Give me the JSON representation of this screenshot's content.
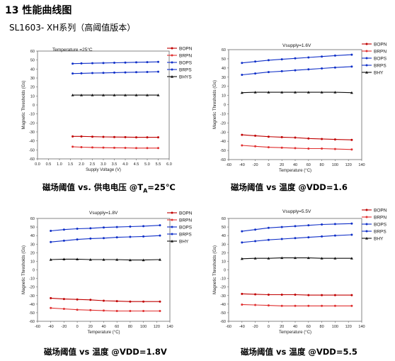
{
  "section": {
    "number": "13",
    "title": "性能曲线图"
  },
  "subtitle": "SL1603- XH系列（高阈值版本）",
  "series_styles": [
    {
      "name": "BOPN",
      "color": "#c00000",
      "marker": "circle"
    },
    {
      "name": "BRPN",
      "color": "#e03030",
      "marker": "circle"
    },
    {
      "name": "BOPS",
      "color": "#1030c8",
      "marker": "circle"
    },
    {
      "name": "BRPS",
      "color": "#1030c8",
      "marker": "circle"
    },
    {
      "name": "BHY",
      "color": "#111111",
      "marker": "triangle"
    }
  ],
  "captions": [
    {
      "main": "磁场阈值 vs.  供电电压  @T",
      "sub": "A",
      "tail": "=25℃"
    },
    {
      "main": "磁场阈值  vs  温度  @VDD=1.6",
      "sub": "",
      "tail": ""
    },
    {
      "main": "磁场阈值  vs  温度  @VDD=1.8V",
      "sub": "",
      "tail": ""
    },
    {
      "main": "磁场阈值  vs  温度  @VDD=5.5",
      "sub": "",
      "tail": ""
    }
  ],
  "chart_data": [
    {
      "type": "line",
      "title": "Temperature =25°C",
      "xlabel": "Supply Voltage (V)",
      "ylabel": "Magnetic Thresholds (Gs)",
      "xlim": [
        0.0,
        6.0
      ],
      "ylim": [
        -60,
        60
      ],
      "xticks": [
        "0.0",
        "0.5",
        "1.0",
        "1.5",
        "2.0",
        "2.5",
        "3.0",
        "3.5",
        "4.0",
        "4.5",
        "5.0",
        "5.5",
        "6.0"
      ],
      "yticks": [
        "60",
        "50",
        "40",
        "30",
        "20",
        "10",
        "0",
        "-10",
        "-20",
        "-30",
        "-40",
        "-50",
        "-60"
      ],
      "legend": [
        "BOPN",
        "BRPN",
        "BOPS",
        "BRPS",
        "BHYS"
      ],
      "x": [
        1.6,
        2.0,
        2.5,
        3.0,
        3.5,
        4.0,
        4.5,
        5.0,
        5.5
      ],
      "series": [
        {
          "name": "BOPN",
          "values": [
            -35,
            -35,
            -35.3,
            -35.5,
            -35.7,
            -35.8,
            -36,
            -36,
            -36
          ]
        },
        {
          "name": "BRPN",
          "values": [
            -46.5,
            -47,
            -47.3,
            -47.5,
            -47.7,
            -47.8,
            -48,
            -48,
            -48
          ]
        },
        {
          "name": "BOPS",
          "values": [
            46,
            46.3,
            46.5,
            46.7,
            47,
            47.2,
            47.5,
            47.7,
            48
          ]
        },
        {
          "name": "BRPS",
          "values": [
            35,
            35.2,
            35.5,
            35.7,
            36,
            36.2,
            36.5,
            36.7,
            37
          ]
        },
        {
          "name": "BHYS",
          "values": [
            11,
            11,
            11,
            11,
            11,
            11,
            11,
            11,
            11
          ]
        }
      ]
    },
    {
      "type": "line",
      "title": "Vsupply=1.6V",
      "xlabel": "Temperature (°C)",
      "ylabel": "Magnetic Thresholds (Gs)",
      "xlim": [
        -60,
        140
      ],
      "ylim": [
        -60,
        60
      ],
      "xticks": [
        "-60",
        "-40",
        "-20",
        "0",
        "20",
        "40",
        "60",
        "80",
        "100",
        "120",
        "140"
      ],
      "yticks": [
        "60",
        "50",
        "40",
        "30",
        "20",
        "10",
        "0",
        "-10",
        "-20",
        "-30",
        "-40",
        "-50",
        "-60"
      ],
      "legend": [
        "BOPN",
        "BRPN",
        "BOPS",
        "BRPS",
        "BHY"
      ],
      "x": [
        -40,
        -20,
        0,
        20,
        40,
        60,
        80,
        100,
        125
      ],
      "series": [
        {
          "name": "BOPN",
          "values": [
            -33,
            -34,
            -35,
            -35.5,
            -36,
            -37,
            -37.5,
            -38,
            -38.5
          ]
        },
        {
          "name": "BRPN",
          "values": [
            -44.5,
            -45.5,
            -46.5,
            -47,
            -47.5,
            -48,
            -48,
            -48.5,
            -49
          ]
        },
        {
          "name": "BOPS",
          "values": [
            45.5,
            47,
            48.5,
            49.5,
            50.5,
            51.5,
            52.5,
            53.5,
            54.5
          ]
        },
        {
          "name": "BRPS",
          "values": [
            32.5,
            34,
            35.5,
            36.5,
            37.5,
            38.5,
            39.5,
            40.5,
            41.5
          ]
        },
        {
          "name": "BHY",
          "values": [
            13,
            13.5,
            13.5,
            13.5,
            13.5,
            13.5,
            13.5,
            13.5,
            13
          ]
        }
      ]
    },
    {
      "type": "line",
      "title": "Vsupply=1.8V",
      "xlabel": "Temperature (°C)",
      "ylabel": "Magnetic Thresholds (Gs)",
      "xlim": [
        -60,
        140
      ],
      "ylim": [
        -60,
        60
      ],
      "xticks": [
        "-60",
        "-40",
        "-20",
        "0",
        "20",
        "40",
        "60",
        "80",
        "100",
        "120",
        "140"
      ],
      "yticks": [
        "60",
        "50",
        "40",
        "30",
        "20",
        "10",
        "0",
        "-10",
        "-20",
        "-30",
        "-40",
        "-50",
        "-60"
      ],
      "legend": [
        "BOPN",
        "BRPN",
        "BOPS",
        "BRPS",
        "BHY"
      ],
      "x": [
        -40,
        -20,
        0,
        20,
        40,
        60,
        80,
        100,
        125
      ],
      "series": [
        {
          "name": "BOPN",
          "values": [
            -33,
            -34,
            -34.5,
            -35,
            -36,
            -36.5,
            -37,
            -37,
            -37
          ]
        },
        {
          "name": "BRPN",
          "values": [
            -44.5,
            -45.5,
            -46.5,
            -47,
            -47.5,
            -48,
            -48,
            -48,
            -48
          ]
        },
        {
          "name": "BOPS",
          "values": [
            45.5,
            47,
            48,
            48.5,
            49.5,
            50,
            50.5,
            51,
            52
          ]
        },
        {
          "name": "BRPS",
          "values": [
            32.5,
            34,
            35.5,
            36.5,
            37,
            38,
            38.5,
            39,
            40
          ]
        },
        {
          "name": "BHY",
          "values": [
            12,
            12.5,
            12.5,
            12,
            12,
            12,
            11.5,
            11.5,
            12
          ]
        }
      ]
    },
    {
      "type": "line",
      "title": "Vsupply=5.5V",
      "xlabel": "Temperature (°C)",
      "ylabel": "Magnetic Thresholds (Gs)",
      "xlim": [
        -60,
        140
      ],
      "ylim": [
        -60,
        60
      ],
      "xticks": [
        "-60",
        "-40",
        "-20",
        "0",
        "20",
        "40",
        "60",
        "80",
        "100",
        "120",
        "140"
      ],
      "yticks": [
        "60",
        "50",
        "40",
        "30",
        "20",
        "10",
        "0",
        "-10",
        "-20",
        "-30",
        "-40",
        "-50",
        "-60"
      ],
      "legend": [
        "BOPN",
        "BRPN",
        "BOPS",
        "BRPS",
        "BHY"
      ],
      "x": [
        -40,
        -20,
        0,
        20,
        40,
        60,
        80,
        100,
        125
      ],
      "series": [
        {
          "name": "BOPN",
          "values": [
            -28,
            -28.5,
            -29,
            -29,
            -29,
            -29.5,
            -29.5,
            -29.5,
            -29.5
          ]
        },
        {
          "name": "BRPN",
          "values": [
            -40.5,
            -41,
            -41.5,
            -42,
            -42,
            -42,
            -42,
            -42,
            -42
          ]
        },
        {
          "name": "BOPS",
          "values": [
            45,
            47,
            49,
            50,
            51,
            52,
            53,
            53.5,
            54
          ]
        },
        {
          "name": "BRPS",
          "values": [
            32,
            33.5,
            35,
            36,
            37,
            38,
            39,
            40,
            41
          ]
        },
        {
          "name": "BHY",
          "values": [
            13,
            13.5,
            13.5,
            14,
            14,
            14,
            13.5,
            13.5,
            13.5
          ]
        }
      ]
    }
  ]
}
